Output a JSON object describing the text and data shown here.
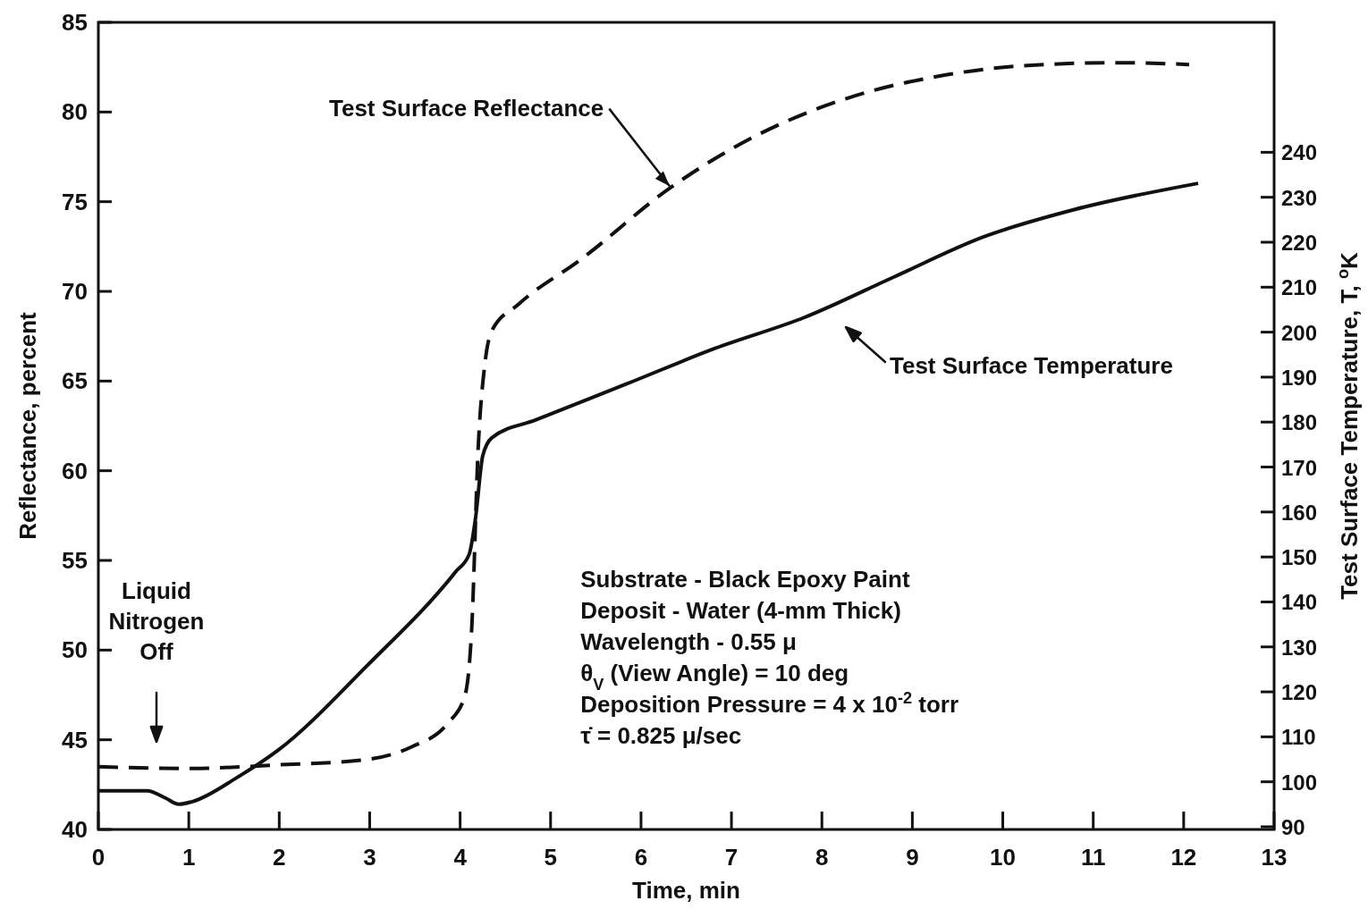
{
  "chart_data": {
    "type": "line",
    "xlabel": "Time, min",
    "ylabel": "Reflectance, percent",
    "y2label": "Test Surface Temperature, T, $^{o}$K",
    "xlim": [
      0,
      13
    ],
    "xticks": [
      0,
      1,
      2,
      3,
      4,
      5,
      6,
      7,
      8,
      9,
      10,
      11,
      12,
      13
    ],
    "ylim": [
      40,
      85
    ],
    "yticks": [
      40,
      45,
      50,
      55,
      60,
      65,
      70,
      75,
      80,
      85
    ],
    "y2lim": [
      89.4,
      268.9
    ],
    "y2ticks": [
      90,
      100,
      110,
      120,
      130,
      140,
      150,
      160,
      170,
      180,
      190,
      200,
      210,
      220,
      230,
      240
    ],
    "grid": false,
    "series": [
      {
        "color": "#111111",
        "line_style": "dashed",
        "x": [
          0,
          0.99,
          1.98,
          2.97,
          3.46,
          3.86,
          4.05,
          4.13,
          4.2,
          4.27,
          4.35,
          4.65,
          5.34,
          6.33,
          7.32,
          8.3,
          9.29,
          10.28,
          11.27,
          12.06
        ],
        "values": [
          43.5,
          43.4,
          43.6,
          43.9,
          44.6,
          45.9,
          47.4,
          51.4,
          61.3,
          65.8,
          67.8,
          69.3,
          71.8,
          75.8,
          78.8,
          80.8,
          82.0,
          82.6,
          82.75,
          82.65
        ]
      },
      {
        "color": "#111111",
        "line_style": "solid",
        "axis": "y2",
        "x": [
          0,
          0.54,
          0.74,
          0.89,
          1.04,
          1.53,
          1.98,
          2.97,
          3.95,
          4.1,
          4.17,
          4.25,
          4.35,
          4.84,
          5.83,
          6.82,
          7.81,
          8.8,
          9.79,
          10.78,
          12.16
        ],
        "values": [
          98.0,
          98.0,
          96.4,
          95.0,
          95.6,
          100.9,
          106.9,
          125.8,
          146.7,
          150.6,
          158.6,
          172.5,
          176.5,
          180.5,
          188.4,
          196.4,
          203.3,
          212.3,
          221.2,
          227.2,
          233.1
        ]
      }
    ],
    "annotations": [
      {
        "text": "Test Surface Reflectance",
        "x": 6.33,
        "y": 75.8
      },
      "Test Surface Temperature",
      "Liquid Nitrogen Off",
      "Substrate - Black Epoxy Paint",
      "Deposit - Water (4-mm Thick)",
      "Wavelength - 0.55 μ",
      "θ$_{V}$ (View Angle) = 10 deg",
      "Deposition Pressure = 4 x 10$^{-2}$ torr",
      "τ̇ = 0.825 μ/sec"
    ]
  }
}
